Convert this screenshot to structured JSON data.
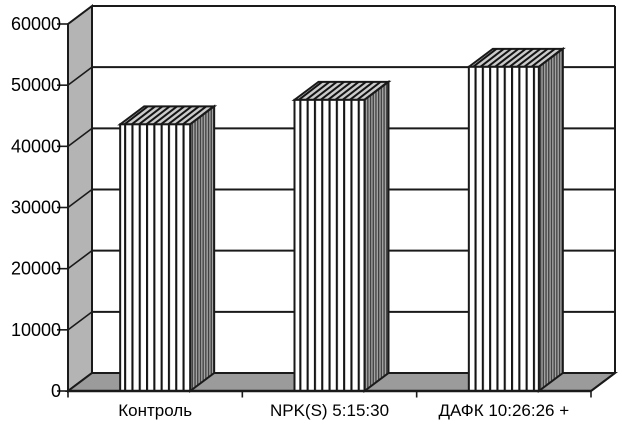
{
  "page": {
    "background": "#ffffff"
  },
  "chart_data": {
    "type": "bar",
    "variant": "3d-column-pattern-fill",
    "title": "",
    "xlabel": "",
    "ylabel": "",
    "categories": [
      "Контроль",
      "NPK(S) 5:15:30",
      "ДАФК 10:26:26 +"
    ],
    "values": [
      43600,
      47600,
      53000
    ],
    "ylim": [
      0,
      60000
    ],
    "y_tick_step": 10000,
    "y_tick_labels": [
      "0",
      "10000",
      "20000",
      "30000",
      "40000",
      "50000",
      "60000"
    ],
    "grid": true,
    "legend_position": "none",
    "bar_pattern": "vertical-stripes",
    "colors": {
      "background": "#ffffff",
      "line": "#1a1a1a",
      "text": "#000000",
      "wall_left": "#b4b4b4",
      "floor": "#9b9b9b",
      "bar_front_bg": "#ffffff",
      "bar_stripe": "#141414",
      "bar_top_bg": "#cbcbcb",
      "bar_side_bg": "#a3a3a3",
      "bar_side_stripe": "#3f3f3f"
    }
  }
}
